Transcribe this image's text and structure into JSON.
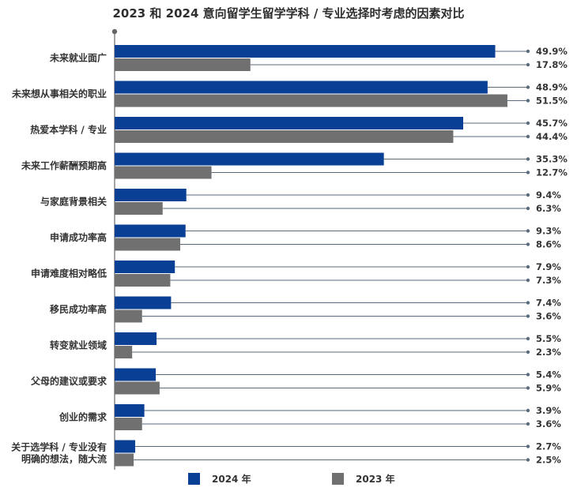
{
  "chart_data": {
    "type": "bar",
    "orientation": "horizontal",
    "title": "2023 和 2024 意向留学生留学学科 / 专业选择时考虑的因素对比",
    "categories": [
      [
        "未来就业面广"
      ],
      [
        "未来想从事相关的职业"
      ],
      [
        "热爱本学科 / 专业"
      ],
      [
        "未来工作薪酬预期高"
      ],
      [
        "与家庭背景相关"
      ],
      [
        "申请成功率高"
      ],
      [
        "申请难度相对略低"
      ],
      [
        "移民成功率高"
      ],
      [
        "转变就业领域"
      ],
      [
        "父母的建议或要求"
      ],
      [
        "创业的需求"
      ],
      [
        "关于选学科 / 专业没有",
        "明确的想法，随大流"
      ]
    ],
    "series": [
      {
        "name": "2024 年",
        "color": "#0a3f96",
        "values": [
          49.9,
          48.9,
          45.7,
          35.3,
          9.4,
          9.3,
          7.9,
          7.4,
          5.5,
          5.4,
          3.9,
          2.7
        ],
        "labels": [
          "49.9%",
          "48.9%",
          "45.7%",
          "35.3%",
          "9.4%",
          "9.3%",
          "7.9%",
          "7.4%",
          "5.5%",
          "5.4%",
          "3.9%",
          "2.7%"
        ]
      },
      {
        "name": "2023 年",
        "color": "#707070",
        "values": [
          17.8,
          51.5,
          44.4,
          12.7,
          6.3,
          8.6,
          7.3,
          3.6,
          2.3,
          5.9,
          3.6,
          2.5
        ],
        "labels": [
          "17.8%",
          "51.5%",
          "44.4%",
          "12.7%",
          "6.3%",
          "8.6%",
          "7.3%",
          "3.6%",
          "2.3%",
          "5.9%",
          "3.6%",
          "2.5%"
        ]
      }
    ],
    "xlim": [
      0,
      52
    ],
    "grid": false,
    "legend": "bottom-center",
    "leader_line_color": "#5a6b7b",
    "axis_color": "#666666"
  }
}
